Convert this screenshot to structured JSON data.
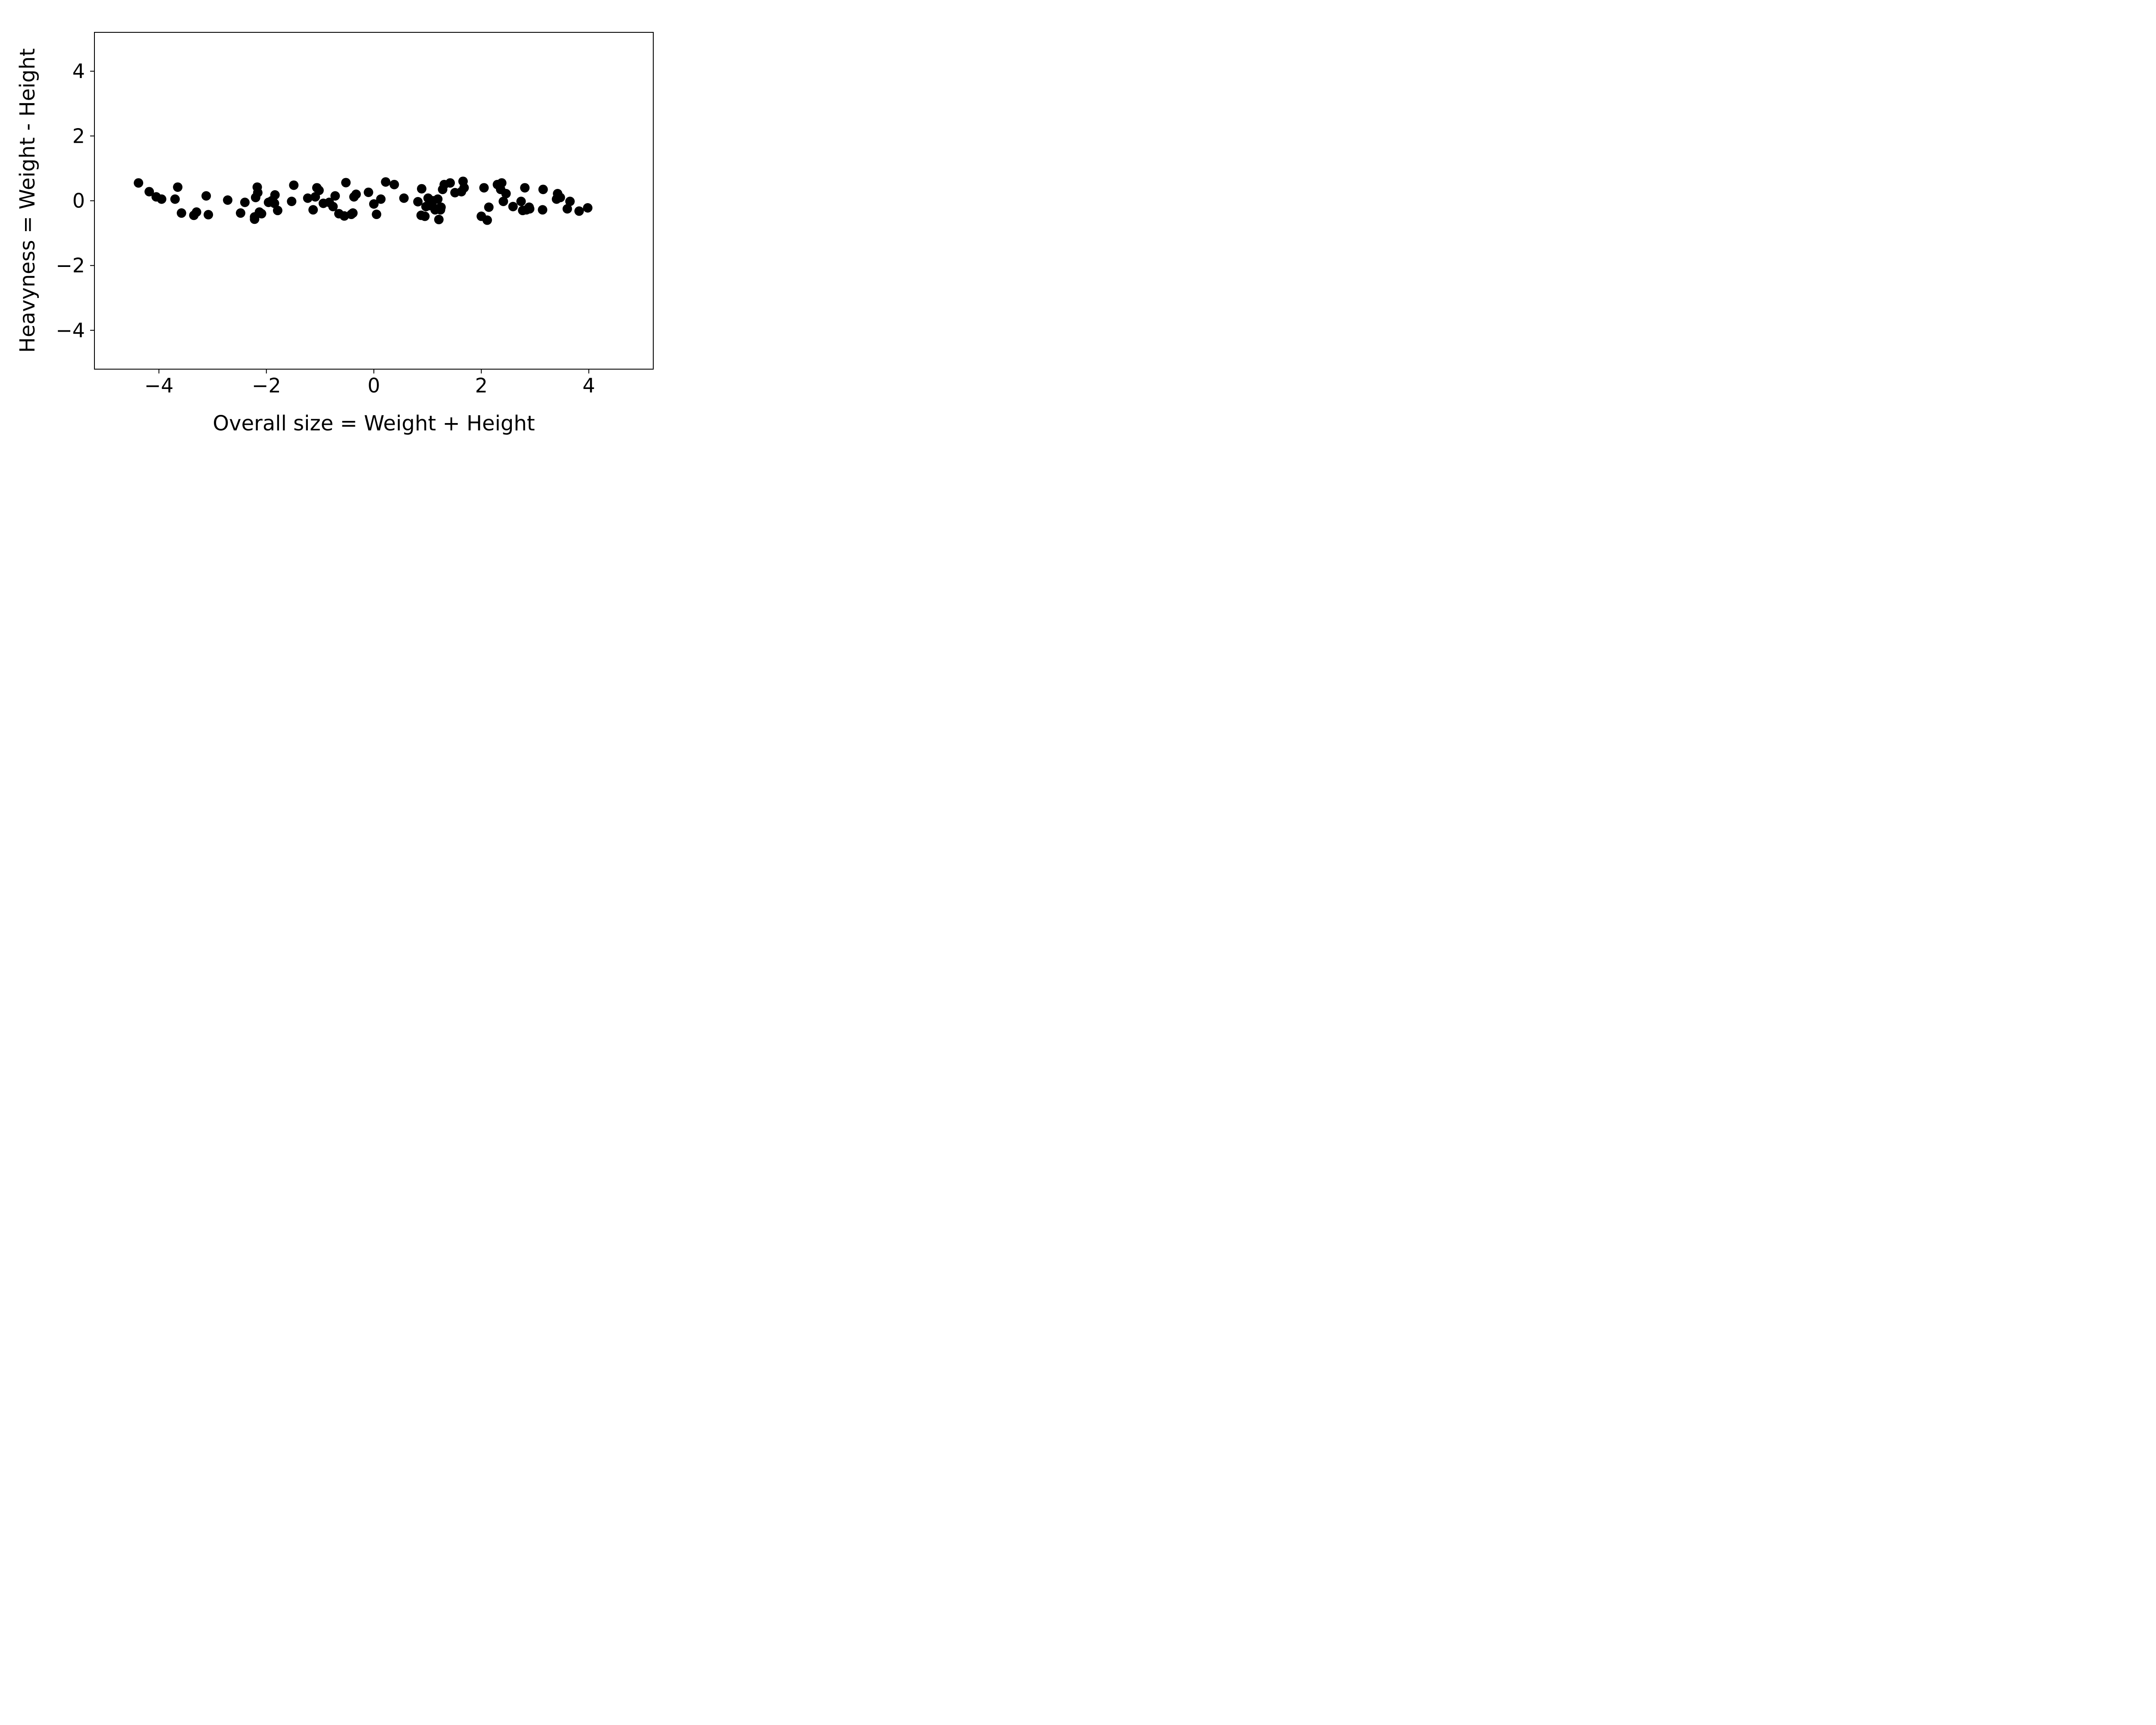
{
  "chart_data": {
    "type": "scatter",
    "title": "",
    "xlabel": "Overall size = Weight + Height",
    "ylabel": "Heavyness = Weight - Height",
    "xlim": [
      -5.2,
      5.2
    ],
    "ylim": [
      -5.2,
      5.2
    ],
    "xticks": [
      -4,
      -2,
      0,
      2,
      4
    ],
    "yticks": [
      -4,
      -2,
      0,
      2,
      4
    ],
    "xtick_labels": [
      "−4",
      "−2",
      "0",
      "2",
      "4"
    ],
    "ytick_labels": [
      "−4",
      "−2",
      "0",
      "2",
      "4"
    ],
    "grid": false,
    "marker_color": "#000000",
    "points": [
      [
        -4.38,
        0.55
      ],
      [
        -4.18,
        0.28
      ],
      [
        -4.05,
        0.12
      ],
      [
        -3.95,
        0.05
      ],
      [
        -3.7,
        0.05
      ],
      [
        -3.65,
        0.42
      ],
      [
        -3.58,
        -0.38
      ],
      [
        -3.35,
        -0.45
      ],
      [
        -3.3,
        -0.35
      ],
      [
        -3.12,
        0.15
      ],
      [
        -3.08,
        -0.43
      ],
      [
        -2.72,
        0.02
      ],
      [
        -2.48,
        -0.38
      ],
      [
        -2.4,
        -0.05
      ],
      [
        -2.22,
        -0.5
      ],
      [
        -2.22,
        -0.57
      ],
      [
        -2.2,
        0.1
      ],
      [
        -2.17,
        0.42
      ],
      [
        -2.16,
        0.25
      ],
      [
        -2.13,
        -0.35
      ],
      [
        -2.09,
        -0.4
      ],
      [
        -1.96,
        -0.05
      ],
      [
        -1.9,
        0.0
      ],
      [
        -1.85,
        -0.08
      ],
      [
        -1.84,
        0.18
      ],
      [
        -1.79,
        -0.3
      ],
      [
        -1.53,
        -0.02
      ],
      [
        -1.49,
        0.48
      ],
      [
        -1.23,
        0.08
      ],
      [
        -1.13,
        -0.28
      ],
      [
        -1.09,
        0.12
      ],
      [
        -1.06,
        0.4
      ],
      [
        -1.02,
        0.32
      ],
      [
        -0.94,
        -0.08
      ],
      [
        -0.83,
        -0.05
      ],
      [
        -0.76,
        -0.18
      ],
      [
        -0.72,
        0.15
      ],
      [
        -0.65,
        -0.4
      ],
      [
        -0.55,
        -0.47
      ],
      [
        -0.52,
        0.56
      ],
      [
        -0.42,
        -0.42
      ],
      [
        -0.39,
        -0.38
      ],
      [
        -0.37,
        0.12
      ],
      [
        -0.33,
        0.2
      ],
      [
        -0.1,
        0.26
      ],
      [
        0.0,
        -0.1
      ],
      [
        0.05,
        -0.42
      ],
      [
        0.13,
        0.05
      ],
      [
        0.22,
        0.58
      ],
      [
        0.38,
        0.5
      ],
      [
        0.56,
        0.08
      ],
      [
        0.82,
        -0.03
      ],
      [
        0.88,
        -0.45
      ],
      [
        0.89,
        0.37
      ],
      [
        0.95,
        -0.48
      ],
      [
        0.97,
        -0.18
      ],
      [
        1.01,
        0.08
      ],
      [
        1.04,
        -0.15
      ],
      [
        1.1,
        0.0
      ],
      [
        1.14,
        -0.28
      ],
      [
        1.18,
        -0.25
      ],
      [
        1.19,
        0.05
      ],
      [
        1.21,
        -0.58
      ],
      [
        1.24,
        -0.28
      ],
      [
        1.25,
        -0.2
      ],
      [
        1.28,
        0.35
      ],
      [
        1.31,
        0.5
      ],
      [
        1.42,
        0.55
      ],
      [
        1.51,
        0.25
      ],
      [
        1.63,
        0.28
      ],
      [
        1.66,
        0.6
      ],
      [
        1.68,
        0.4
      ],
      [
        2.0,
        -0.48
      ],
      [
        2.05,
        0.4
      ],
      [
        2.11,
        -0.6
      ],
      [
        2.14,
        -0.2
      ],
      [
        2.3,
        0.5
      ],
      [
        2.36,
        0.35
      ],
      [
        2.38,
        0.55
      ],
      [
        2.41,
        -0.02
      ],
      [
        2.46,
        0.22
      ],
      [
        2.59,
        -0.18
      ],
      [
        2.74,
        -0.02
      ],
      [
        2.77,
        -0.3
      ],
      [
        2.81,
        0.4
      ],
      [
        2.84,
        -0.28
      ],
      [
        2.89,
        -0.2
      ],
      [
        2.9,
        -0.25
      ],
      [
        3.14,
        -0.28
      ],
      [
        3.15,
        0.35
      ],
      [
        3.4,
        0.05
      ],
      [
        3.42,
        0.22
      ],
      [
        3.47,
        0.1
      ],
      [
        3.6,
        -0.25
      ],
      [
        3.65,
        -0.02
      ],
      [
        3.82,
        -0.32
      ],
      [
        3.98,
        -0.22
      ]
    ]
  }
}
